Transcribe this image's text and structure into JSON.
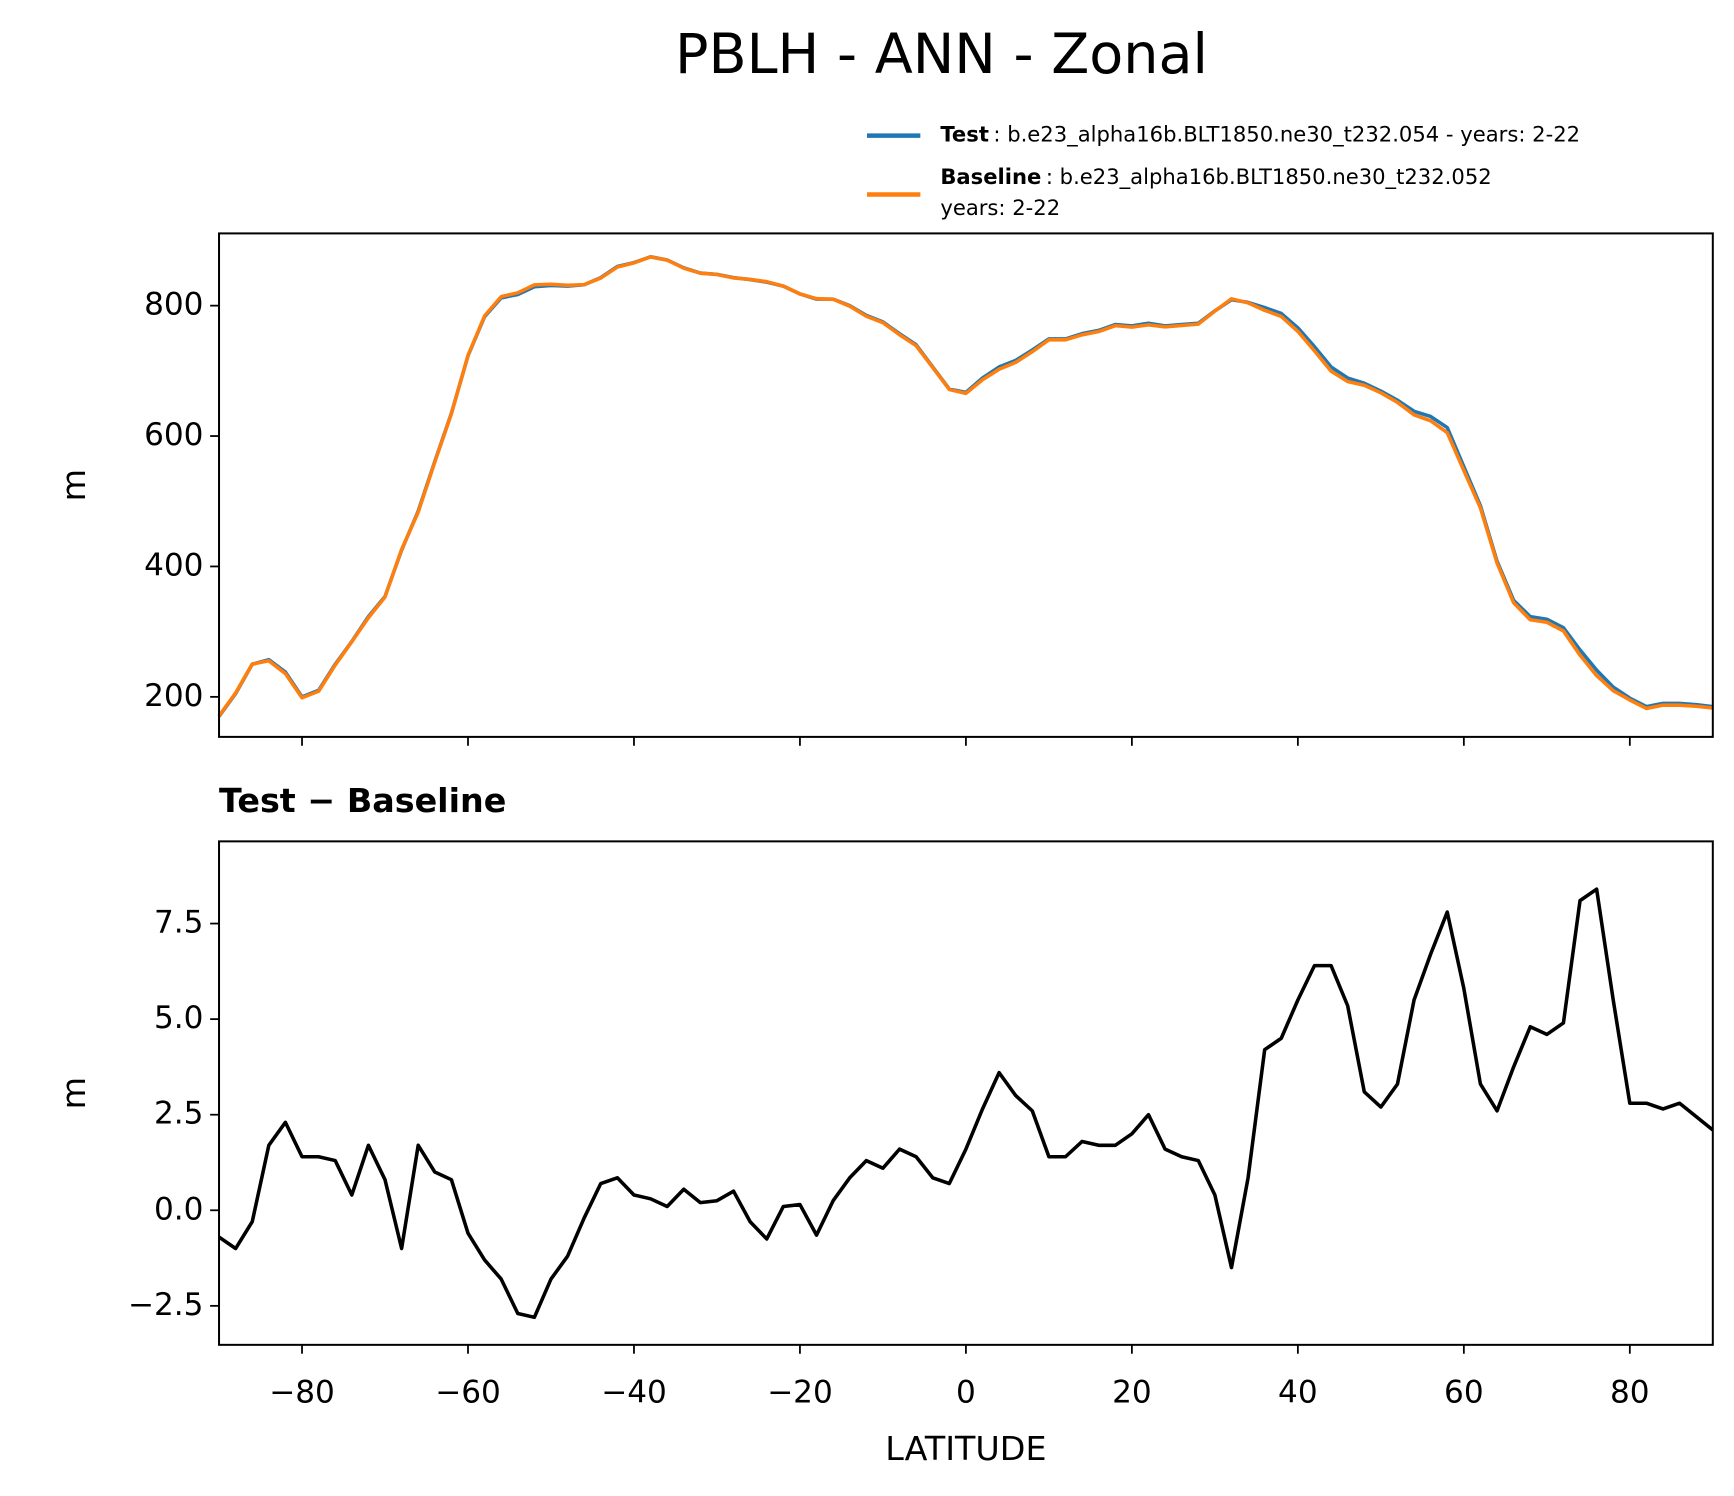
{
  "title": "PBLH - ANN - Zonal",
  "chart_data": [
    {
      "type": "line",
      "ylabel": "m",
      "x": [
        -90,
        -88,
        -86,
        -84,
        -82,
        -80,
        -78,
        -76,
        -74,
        -72,
        -70,
        -68,
        -66,
        -64,
        -62,
        -60,
        -58,
        -56,
        -54,
        -52,
        -50,
        -48,
        -46,
        -44,
        -42,
        -40,
        -38,
        -36,
        -34,
        -32,
        -30,
        -28,
        -26,
        -24,
        -22,
        -20,
        -18,
        -16,
        -14,
        -12,
        -10,
        -8,
        -6,
        -4,
        -2,
        0,
        2,
        4,
        6,
        8,
        10,
        12,
        14,
        16,
        18,
        20,
        22,
        24,
        26,
        28,
        30,
        32,
        34,
        36,
        38,
        40,
        42,
        44,
        46,
        48,
        50,
        52,
        54,
        56,
        58,
        60,
        62,
        64,
        66,
        68,
        70,
        72,
        74,
        76,
        78,
        80,
        82,
        84,
        86,
        88,
        90
      ],
      "xlim": [
        -90,
        90
      ],
      "xticks": [
        -80,
        -60,
        -40,
        -20,
        0,
        20,
        40,
        60,
        80
      ],
      "ylim": [
        138.6,
        910.8
      ],
      "yticks": [
        200,
        400,
        600,
        800
      ],
      "series": [
        {
          "name": "Test",
          "description": ": b.e23_alpha16b.BLT1850.ne30_t232.054 - years: 2-22",
          "color": "#1f77b4",
          "values": [
            170,
            205,
            250,
            257,
            238,
            200,
            210,
            250,
            285,
            323,
            354,
            425,
            485,
            561,
            635,
            723,
            783,
            812,
            817,
            829,
            831,
            830,
            832,
            843,
            860,
            866,
            875,
            870,
            858,
            850,
            848,
            843,
            840,
            836,
            830,
            818,
            810,
            810,
            800,
            785,
            775,
            757,
            740,
            706,
            672,
            667,
            689,
            706,
            716,
            732,
            749,
            749,
            757,
            762,
            771,
            769,
            773,
            769,
            771,
            773,
            792,
            809,
            805,
            797,
            788,
            766,
            737,
            706,
            689,
            681,
            669,
            655,
            638,
            630,
            613,
            553,
            493,
            408,
            348,
            323,
            319,
            306,
            272,
            241,
            215,
            198,
            185,
            190,
            190,
            188,
            185
          ]
        },
        {
          "name": "Baseline",
          "description": ": b.e23_alpha16b.BLT1850.ne30_t232.052",
          "description_2": "years: 2-22",
          "color": "#ff7f0e",
          "values": [
            170.7,
            206,
            250.3,
            255.3,
            235.7,
            198.6,
            208.6,
            248.7,
            284.6,
            321.3,
            353.2,
            426,
            483.3,
            560,
            634.2,
            723.6,
            784.3,
            813.8,
            819.7,
            831.8,
            832.8,
            831.2,
            832.2,
            842.3,
            859.15,
            865.6,
            874.7,
            869.9,
            857.45,
            849.8,
            847.75,
            842.5,
            840.3,
            836.75,
            829.9,
            817.85,
            810.65,
            809.75,
            799.15,
            783.7,
            773.9,
            755.4,
            738.6,
            705.15,
            671.3,
            665.4,
            686.35,
            702.4,
            713,
            729.4,
            747.6,
            747.6,
            755.2,
            760.3,
            769.3,
            767,
            770.5,
            767.4,
            769.6,
            771.7,
            791.6,
            810.5,
            804.15,
            792.8,
            783.5,
            760.5,
            730.6,
            699.6,
            683.65,
            677.9,
            666.3,
            651.7,
            632.5,
            623.3,
            605.2,
            547.2,
            489.7,
            405.4,
            344.25,
            318.2,
            314.4,
            301.1,
            263.9,
            232.6,
            209.5,
            195.2,
            182.2,
            187.35,
            187.2,
            185.55,
            182.9
          ]
        }
      ]
    },
    {
      "type": "line",
      "title": "Test − Baseline",
      "ylabel": "m",
      "xlabel": "LATITUDE",
      "x": [
        -90,
        -88,
        -86,
        -84,
        -82,
        -80,
        -78,
        -76,
        -74,
        -72,
        -70,
        -68,
        -66,
        -64,
        -62,
        -60,
        -58,
        -56,
        -54,
        -52,
        -50,
        -48,
        -46,
        -44,
        -42,
        -40,
        -38,
        -36,
        -34,
        -32,
        -30,
        -28,
        -26,
        -24,
        -22,
        -20,
        -18,
        -16,
        -14,
        -12,
        -10,
        -8,
        -6,
        -4,
        -2,
        0,
        2,
        4,
        6,
        8,
        10,
        12,
        14,
        16,
        18,
        20,
        22,
        24,
        26,
        28,
        30,
        32,
        34,
        36,
        38,
        40,
        42,
        44,
        46,
        48,
        50,
        52,
        54,
        56,
        58,
        60,
        62,
        64,
        66,
        68,
        70,
        72,
        74,
        76,
        78,
        80,
        82,
        84,
        86,
        88,
        90
      ],
      "xlim": [
        -90,
        90
      ],
      "xticks": [
        {
          "value": -80,
          "label": "−80"
        },
        {
          "value": -60,
          "label": "−60"
        },
        {
          "value": -40,
          "label": "−40"
        },
        {
          "value": -20,
          "label": "−20"
        },
        0,
        20,
        40,
        60,
        80
      ],
      "ylim": [
        -3.52,
        9.65
      ],
      "yticks": [
        {
          "value": -2.5,
          "label": "−2.5"
        },
        {
          "value": 0,
          "label": "0.0"
        },
        2.5,
        {
          "value": 5,
          "label": "5.0"
        },
        7.5
      ],
      "series": [
        {
          "color": "#000000",
          "values": [
            -0.7,
            -1.0,
            -0.3,
            1.7,
            2.3,
            1.4,
            1.4,
            1.3,
            0.4,
            1.7,
            0.8,
            -1.0,
            1.7,
            1.0,
            0.8,
            -0.6,
            -1.3,
            -1.8,
            -2.7,
            -2.8,
            -1.8,
            -1.2,
            -0.2,
            0.7,
            0.85,
            0.4,
            0.3,
            0.1,
            0.55,
            0.2,
            0.25,
            0.5,
            -0.3,
            -0.75,
            0.1,
            0.15,
            -0.65,
            0.25,
            0.85,
            1.3,
            1.1,
            1.6,
            1.4,
            0.85,
            0.7,
            1.6,
            2.65,
            3.6,
            3.0,
            2.6,
            1.4,
            1.4,
            1.8,
            1.7,
            1.7,
            2.0,
            2.5,
            1.6,
            1.4,
            1.3,
            0.4,
            -1.5,
            0.85,
            4.2,
            4.5,
            5.5,
            6.4,
            6.4,
            5.35,
            3.1,
            2.7,
            3.3,
            5.5,
            6.7,
            7.8,
            5.8,
            3.3,
            2.6,
            3.75,
            4.8,
            4.6,
            4.9,
            8.1,
            8.4,
            5.5,
            2.8,
            2.8,
            2.65,
            2.8,
            2.45,
            2.1
          ]
        }
      ]
    }
  ]
}
